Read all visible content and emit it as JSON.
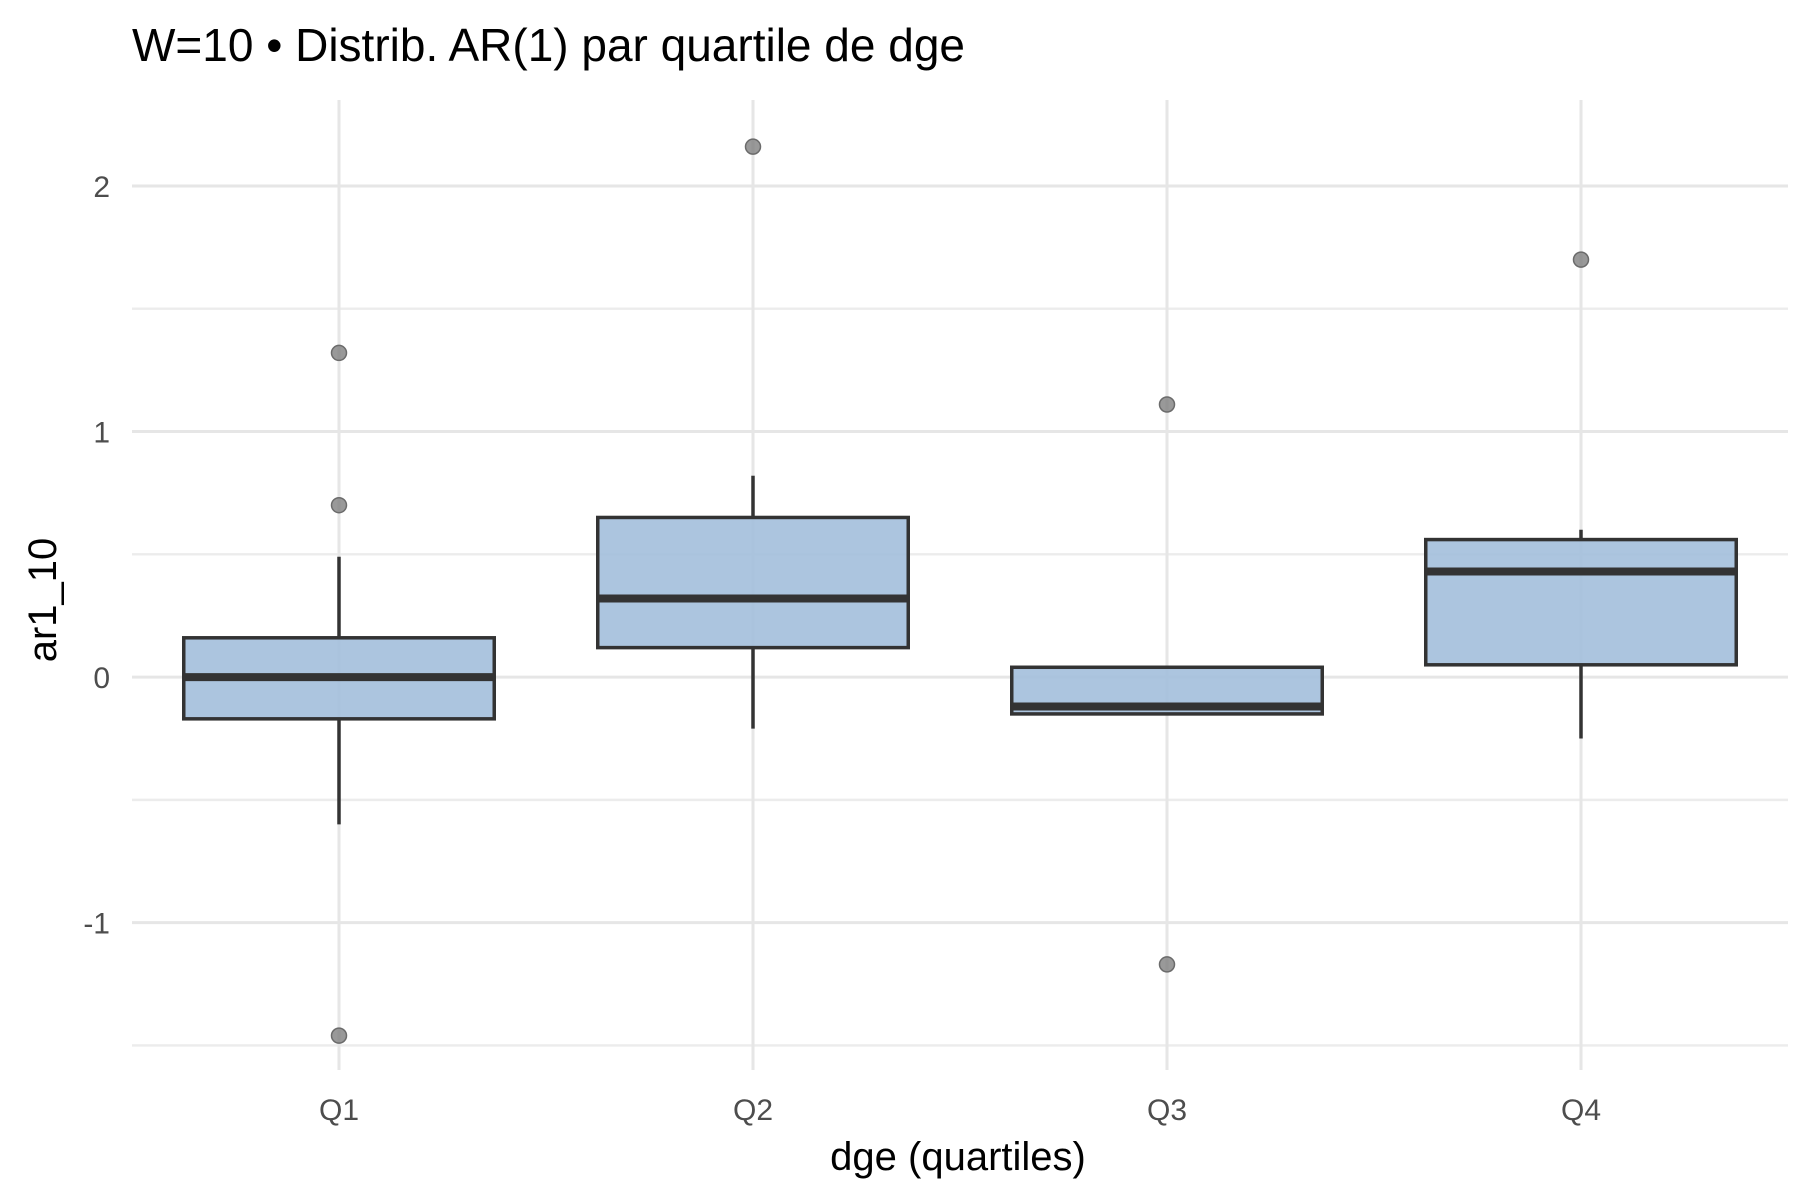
{
  "chart_data": {
    "type": "boxplot",
    "title": "W=10 • Distrib. AR(1) par quartile de dge",
    "xlabel": "dge (quartiles)",
    "ylabel": "ar1_10",
    "categories": [
      "Q1",
      "Q2",
      "Q3",
      "Q4"
    ],
    "ylim": [
      -1.6,
      2.35
    ],
    "y_ticks": [
      -1,
      0,
      1,
      2
    ],
    "y_minor_ticks": [
      -1.5,
      -0.5,
      0.5,
      1.5
    ],
    "grid": true,
    "legend": "none",
    "boxes": [
      {
        "category": "Q1",
        "q1": -0.17,
        "median": 0.0,
        "q3": 0.16,
        "whisker_low": -0.6,
        "whisker_high": 0.49,
        "outliers": [
          1.32,
          0.7,
          -1.46
        ]
      },
      {
        "category": "Q2",
        "q1": 0.12,
        "median": 0.32,
        "q3": 0.65,
        "whisker_low": -0.21,
        "whisker_high": 0.82,
        "outliers": [
          2.16
        ]
      },
      {
        "category": "Q3",
        "q1": -0.15,
        "median": -0.12,
        "q3": 0.04,
        "whisker_low": -0.15,
        "whisker_high": 0.04,
        "outliers": [
          1.11,
          -1.17
        ]
      },
      {
        "category": "Q4",
        "q1": 0.05,
        "median": 0.43,
        "q3": 0.56,
        "whisker_low": -0.25,
        "whisker_high": 0.6,
        "outliers": [
          1.7
        ]
      }
    ],
    "colors": {
      "box_fill": "#a3bfdb",
      "box_stroke": "#333333",
      "outlier": "#7f7f7f",
      "grid": "#e6e6e6"
    }
  }
}
